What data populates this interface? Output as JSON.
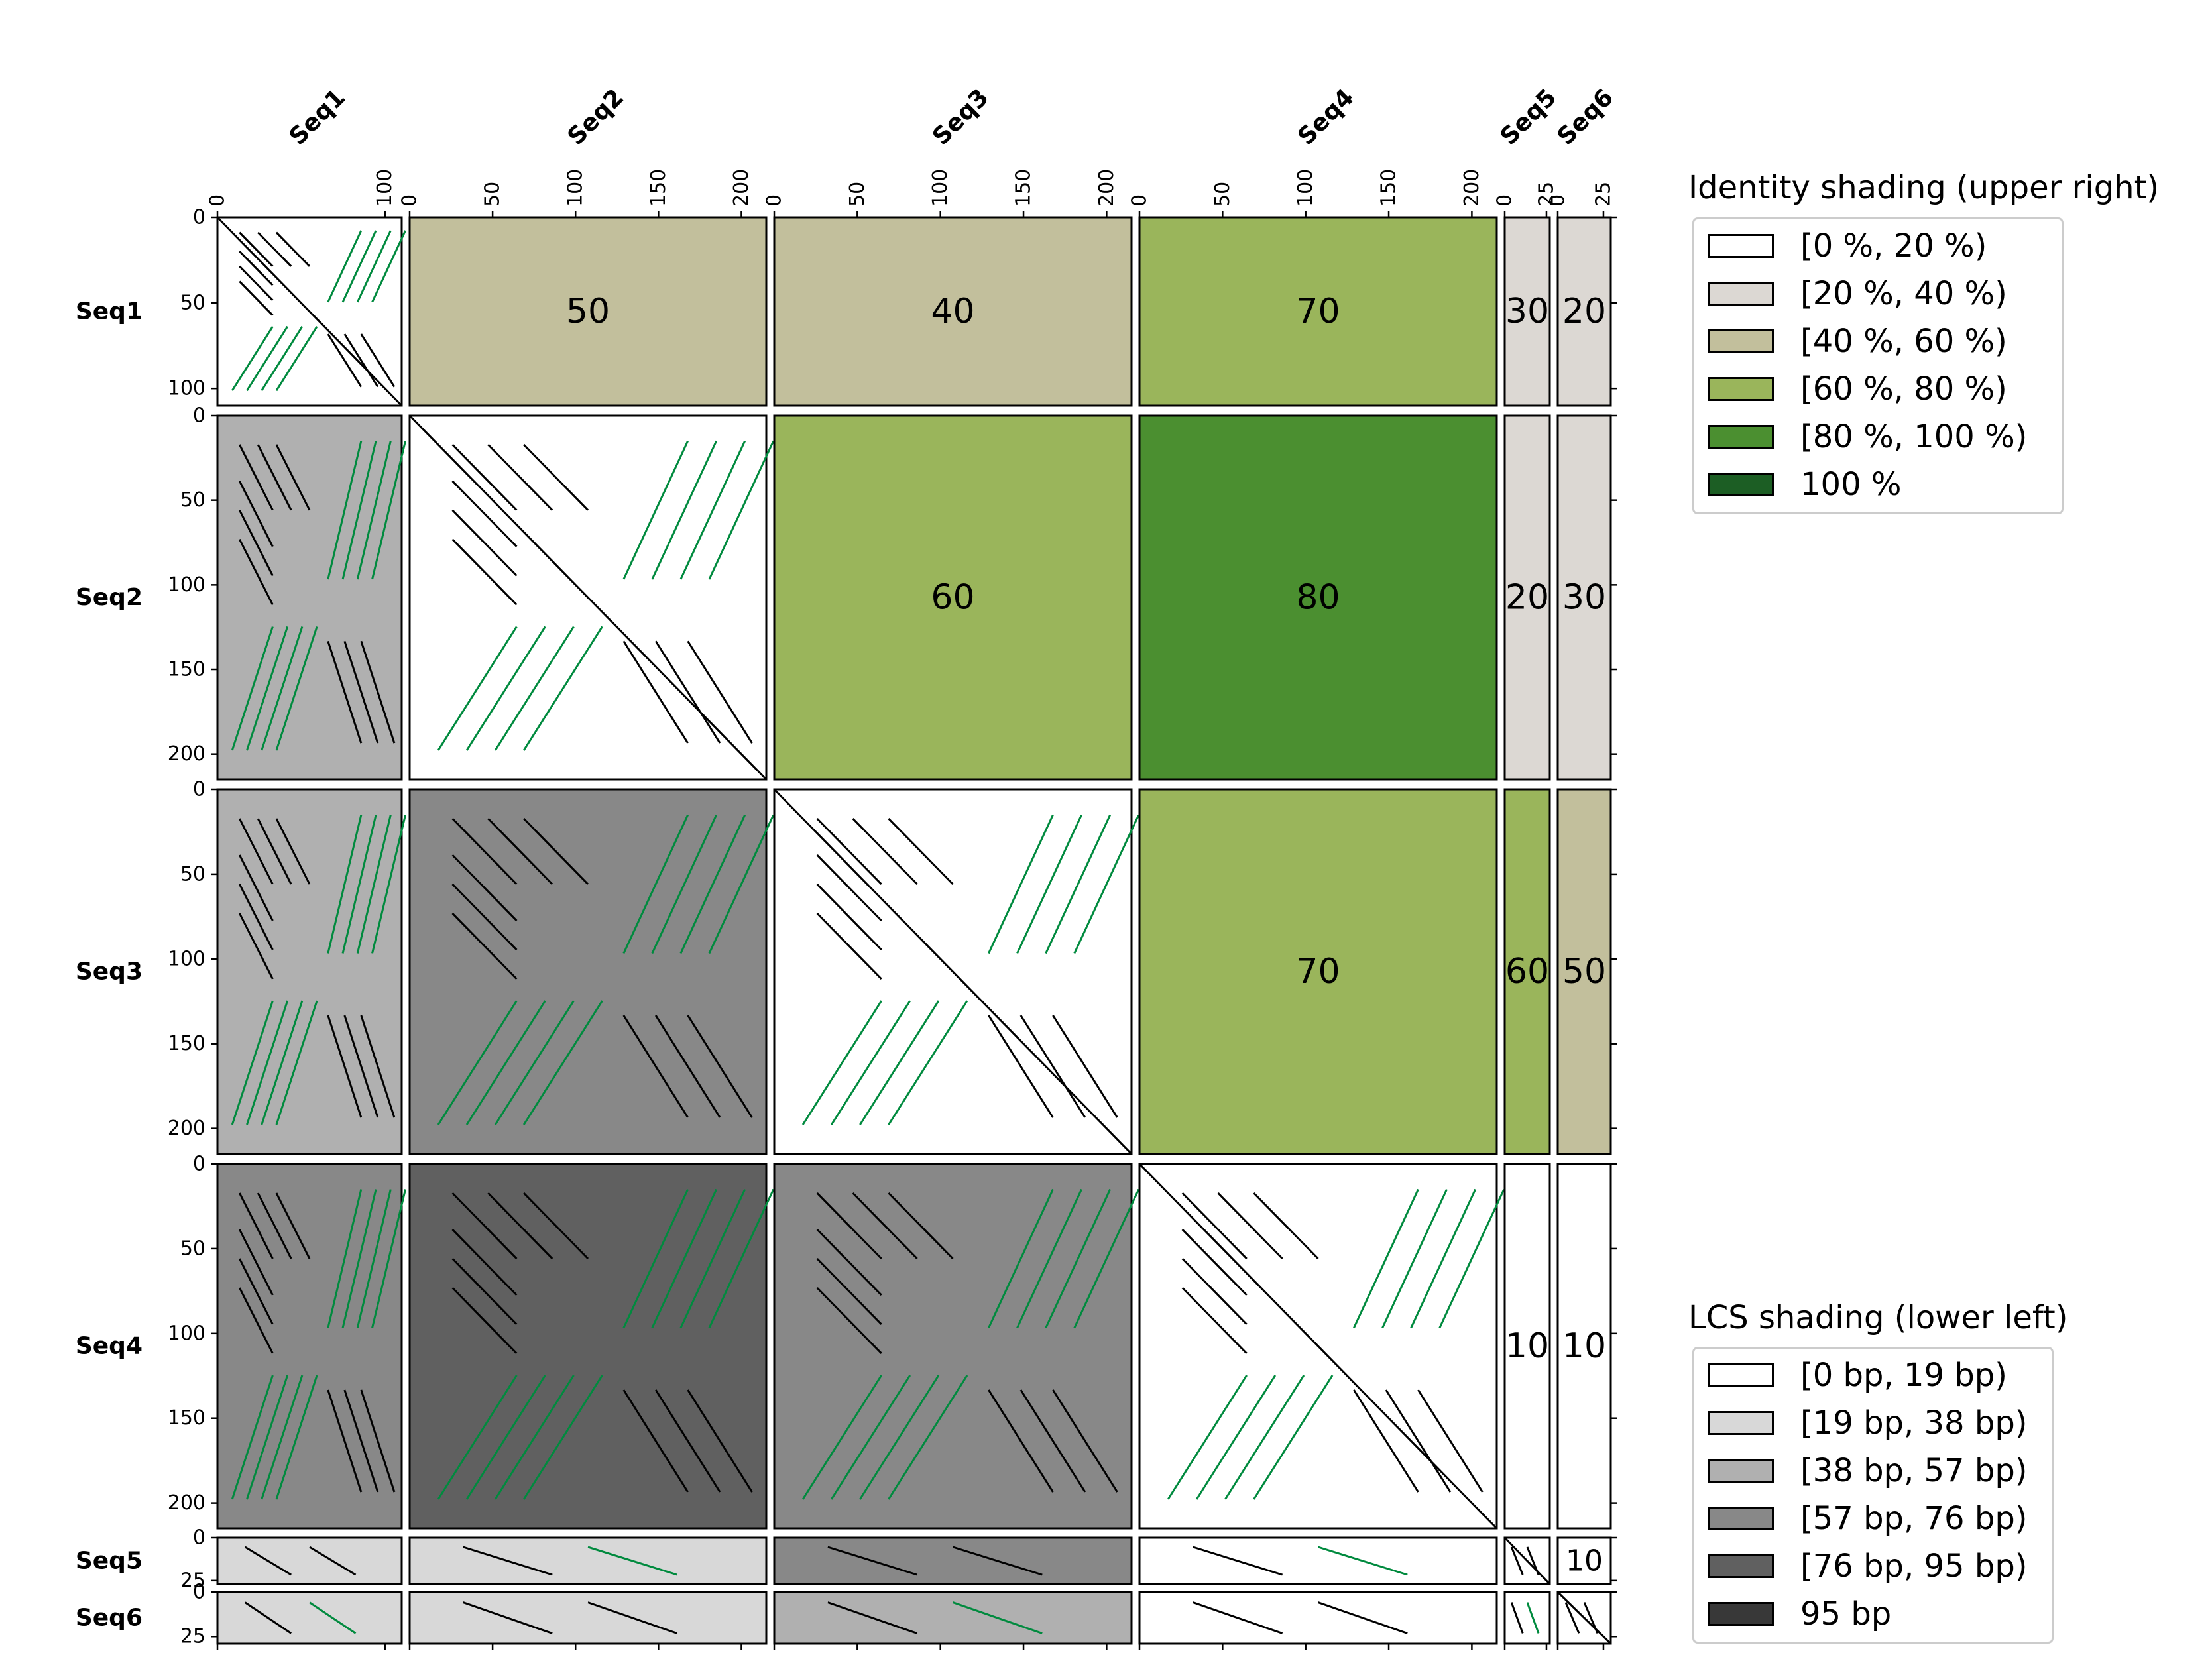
{
  "chart_data": {
    "type": "dotplot matrix",
    "sequences": [
      {
        "name": "Seq1",
        "length": 110,
        "ticks": [
          0,
          100
        ],
        "yticks": [
          0,
          50,
          100
        ]
      },
      {
        "name": "Seq2",
        "length": 215,
        "ticks": [
          0,
          50,
          100,
          150,
          200
        ],
        "yticks": [
          0,
          50,
          100,
          150,
          200
        ]
      },
      {
        "name": "Seq3",
        "length": 215,
        "ticks": [
          0,
          50,
          100,
          150,
          200
        ],
        "yticks": [
          0,
          50,
          100,
          150,
          200
        ]
      },
      {
        "name": "Seq4",
        "length": 215,
        "ticks": [
          0,
          50,
          100,
          150,
          200
        ],
        "yticks": [
          0,
          50,
          100,
          150,
          200
        ]
      },
      {
        "name": "Seq5",
        "length": 27,
        "ticks": [
          0,
          25
        ],
        "yticks": [
          0,
          25
        ]
      },
      {
        "name": "Seq6",
        "length": 29,
        "ticks": [
          0,
          25
        ],
        "yticks": [
          0,
          25
        ]
      }
    ],
    "identity_upper_right": [
      {
        "row": "Seq1",
        "col": "Seq2",
        "value": 50
      },
      {
        "row": "Seq1",
        "col": "Seq3",
        "value": 40
      },
      {
        "row": "Seq1",
        "col": "Seq4",
        "value": 70
      },
      {
        "row": "Seq1",
        "col": "Seq5",
        "value": 30
      },
      {
        "row": "Seq1",
        "col": "Seq6",
        "value": 20
      },
      {
        "row": "Seq2",
        "col": "Seq3",
        "value": 60
      },
      {
        "row": "Seq2",
        "col": "Seq4",
        "value": 80
      },
      {
        "row": "Seq2",
        "col": "Seq5",
        "value": 20
      },
      {
        "row": "Seq2",
        "col": "Seq6",
        "value": 30
      },
      {
        "row": "Seq3",
        "col": "Seq4",
        "value": 70
      },
      {
        "row": "Seq3",
        "col": "Seq5",
        "value": 60
      },
      {
        "row": "Seq3",
        "col": "Seq6",
        "value": 50
      },
      {
        "row": "Seq4",
        "col": "Seq5",
        "value": 10
      },
      {
        "row": "Seq4",
        "col": "Seq6",
        "value": 10
      },
      {
        "row": "Seq5",
        "col": "Seq6",
        "value": 10
      }
    ],
    "lcs_lower_left_bin": [
      {
        "row": "Seq2",
        "col": "Seq1",
        "bin": 2
      },
      {
        "row": "Seq3",
        "col": "Seq1",
        "bin": 2
      },
      {
        "row": "Seq3",
        "col": "Seq2",
        "bin": 3
      },
      {
        "row": "Seq4",
        "col": "Seq1",
        "bin": 3
      },
      {
        "row": "Seq4",
        "col": "Seq2",
        "bin": 4
      },
      {
        "row": "Seq4",
        "col": "Seq3",
        "bin": 3
      },
      {
        "row": "Seq5",
        "col": "Seq1",
        "bin": 1
      },
      {
        "row": "Seq5",
        "col": "Seq2",
        "bin": 1
      },
      {
        "row": "Seq5",
        "col": "Seq3",
        "bin": 3
      },
      {
        "row": "Seq5",
        "col": "Seq4",
        "bin": 0
      },
      {
        "row": "Seq6",
        "col": "Seq1",
        "bin": 1
      },
      {
        "row": "Seq6",
        "col": "Seq2",
        "bin": 1
      },
      {
        "row": "Seq6",
        "col": "Seq3",
        "bin": 2
      },
      {
        "row": "Seq6",
        "col": "Seq4",
        "bin": 0
      },
      {
        "row": "Seq6",
        "col": "Seq5",
        "bin": 0
      }
    ],
    "match_colors": {
      "forward": "#000000",
      "reverse": "#008a3e"
    }
  },
  "legend_identity": {
    "title": "Identity shading (upper right)",
    "items": [
      {
        "label": "[0 %, 20 %)",
        "color": "#ffffff"
      },
      {
        "label": "[20 %, 40 %)",
        "color": "#dcd8d3"
      },
      {
        "label": "[40 %, 60 %)",
        "color": "#c2bf9c"
      },
      {
        "label": "[60 %, 80 %)",
        "color": "#9ab55b"
      },
      {
        "label": "[80 %, 100 %)",
        "color": "#4b8f30"
      },
      {
        "label": "100 %",
        "color": "#1c5e24"
      }
    ]
  },
  "legend_lcs": {
    "title": "LCS shading (lower left)",
    "items": [
      {
        "label": "[0 bp, 19 bp)",
        "color": "#ffffff"
      },
      {
        "label": "[19 bp, 38 bp)",
        "color": "#d8d8d8"
      },
      {
        "label": "[38 bp, 57 bp)",
        "color": "#b0b0b0"
      },
      {
        "label": "[57 bp, 76 bp)",
        "color": "#888888"
      },
      {
        "label": "[76 bp, 95 bp)",
        "color": "#606060"
      },
      {
        "label": "95 bp",
        "color": "#383838"
      }
    ]
  }
}
